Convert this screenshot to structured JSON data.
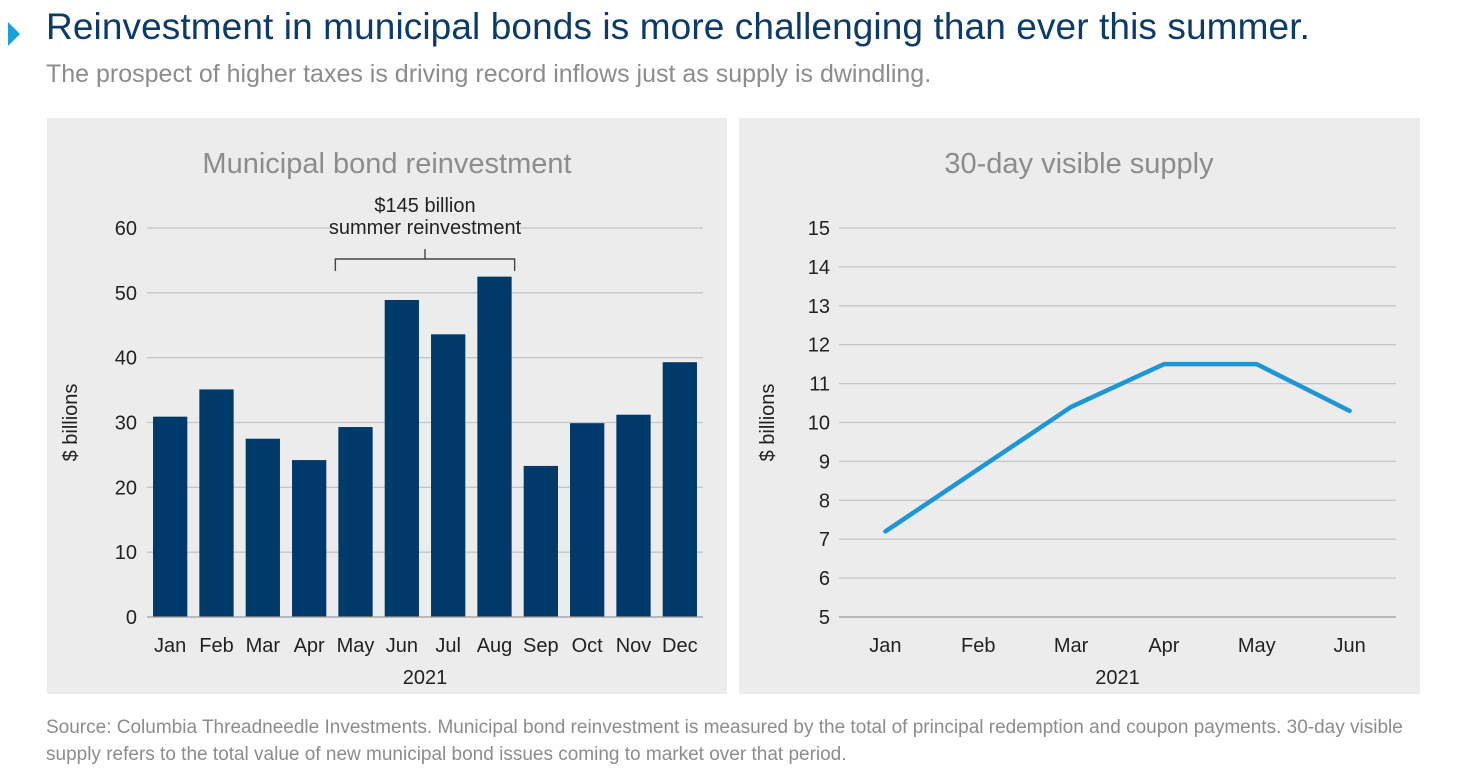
{
  "header": {
    "title": "Reinvestment in municipal bonds is more challenging than ever this summer.",
    "subtitle": "The prospect of higher taxes is driving record inflows just as supply is dwindling."
  },
  "source_note": "Source: Columbia Threadneedle Investments. Municipal bond reinvestment is measured by the total of principal redemption and coupon payments. 30-day visible supply refers to the total value of new municipal bond issues coming to market over that period.",
  "colors": {
    "bar": "#003a6b",
    "line": "#1c96d4",
    "title": "#0b3a6b",
    "muted": "#8c8c8c",
    "panel": "#ececec"
  },
  "chart_data": [
    {
      "type": "bar",
      "title": "Municipal bond reinvestment",
      "ylabel": "$ billions",
      "xlabel": "2021",
      "categories": [
        "Jan",
        "Feb",
        "Mar",
        "Apr",
        "May",
        "Jun",
        "Jul",
        "Aug",
        "Sep",
        "Oct",
        "Nov",
        "Dec"
      ],
      "values": [
        30.9,
        35.1,
        27.5,
        24.2,
        29.3,
        48.9,
        43.6,
        52.5,
        23.3,
        29.9,
        31.2,
        39.3
      ],
      "ylim": [
        0,
        60
      ],
      "yticks": [
        0,
        10,
        20,
        30,
        40,
        50,
        60
      ],
      "grid": true,
      "annotation": {
        "lines": [
          "$145 billion",
          "summer reinvestment"
        ],
        "from": "May",
        "to": "Aug"
      }
    },
    {
      "type": "line",
      "title": "30-day visible supply",
      "ylabel": "$ billions",
      "xlabel": "2021",
      "categories": [
        "Jan",
        "Feb",
        "Mar",
        "Apr",
        "May",
        "Jun"
      ],
      "values": [
        7.2,
        8.8,
        10.4,
        11.5,
        11.5,
        10.3
      ],
      "ylim": [
        5,
        15
      ],
      "yticks": [
        5,
        6,
        7,
        8,
        9,
        10,
        11,
        12,
        13,
        14,
        15
      ],
      "grid": true
    }
  ]
}
